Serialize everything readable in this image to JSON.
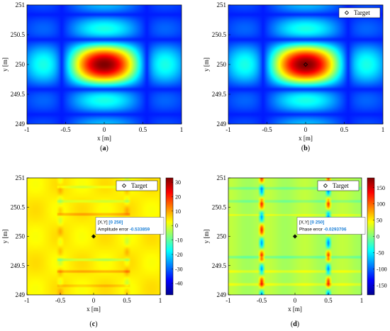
{
  "chart_data": [
    {
      "id": "a",
      "type": "heatmap",
      "caption": "(a)",
      "xlabel": "x [m]",
      "ylabel": "y [m]",
      "xlim": [
        -1,
        1
      ],
      "ylim": [
        249,
        251
      ],
      "xticks": [
        "-1",
        "-0.5",
        "0",
        "0.5",
        "1"
      ],
      "yticks": [
        "249",
        "249.5",
        "250",
        "250.5",
        "251"
      ],
      "field": "sinc-amplitude",
      "colormap": "jet",
      "legend": null,
      "colorbar": null,
      "annotation": null
    },
    {
      "id": "b",
      "type": "heatmap",
      "caption": "(b)",
      "xlabel": "x [m]",
      "ylabel": "y [m]",
      "xlim": [
        -1,
        1
      ],
      "ylim": [
        249,
        251
      ],
      "xticks": [
        "-1",
        "-0.5",
        "0",
        "0.5",
        "1"
      ],
      "yticks": [
        "249",
        "249.5",
        "250",
        "250.5",
        "251"
      ],
      "field": "sinc-amplitude",
      "colormap": "jet",
      "legend": {
        "label": "Target",
        "marker": "diamond",
        "position": "top-right"
      },
      "target": {
        "x": 0,
        "y": 250
      },
      "colorbar": null,
      "annotation": null
    },
    {
      "id": "c",
      "type": "heatmap",
      "caption": "(c)",
      "xlabel": "x [m]",
      "ylabel": "y [m]",
      "xlim": [
        -1,
        1
      ],
      "ylim": [
        249,
        251
      ],
      "xticks": [
        "-1",
        "-0.5",
        "0",
        "0.5",
        "1"
      ],
      "yticks": [
        "249",
        "249.5",
        "250",
        "250.5",
        "251"
      ],
      "field": "amplitude-error",
      "colormap": "jet",
      "legend": {
        "label": "Target",
        "marker": "diamond",
        "position": "top-right"
      },
      "target": {
        "x": 0,
        "y": 250
      },
      "colorbar": {
        "min": -48,
        "max": 33,
        "ticks": [
          "30",
          "20",
          "10",
          "0",
          "-10",
          "-20",
          "-30",
          "-40"
        ],
        "tick_values": [
          30,
          20,
          10,
          0,
          -10,
          -20,
          -30,
          -40
        ]
      },
      "annotation": {
        "line1_label": "[X,Y]",
        "line1_value": "[0 250]",
        "line2_label": "Amplitude error",
        "line2_value": "-0.533859"
      }
    },
    {
      "id": "d",
      "type": "heatmap",
      "caption": "(d)",
      "xlabel": "x [m]",
      "ylabel": "y [m]",
      "xlim": [
        -1,
        1
      ],
      "ylim": [
        249,
        251
      ],
      "xticks": [
        "-1",
        "-0.5",
        "0",
        "0.5",
        "1"
      ],
      "yticks": [
        "249",
        "249.5",
        "250",
        "250.5",
        "251"
      ],
      "field": "phase-error",
      "colormap": "jet",
      "legend": {
        "label": "Target",
        "marker": "diamond",
        "position": "top-right"
      },
      "target": {
        "x": 0,
        "y": 250
      },
      "colorbar": {
        "min": -180,
        "max": 180,
        "ticks": [
          "150",
          "100",
          "50",
          "0",
          "-50",
          "-100",
          "-150"
        ],
        "tick_values": [
          150,
          100,
          50,
          0,
          -50,
          -100,
          -150
        ]
      },
      "annotation": {
        "line1_label": "[X,Y]",
        "line1_value": "[0 250]",
        "line2_label": "Phase error",
        "line2_value": "-0.0293706"
      }
    }
  ],
  "colors": {
    "annotation_value": "#1a7fd6",
    "frame": "#000000"
  }
}
